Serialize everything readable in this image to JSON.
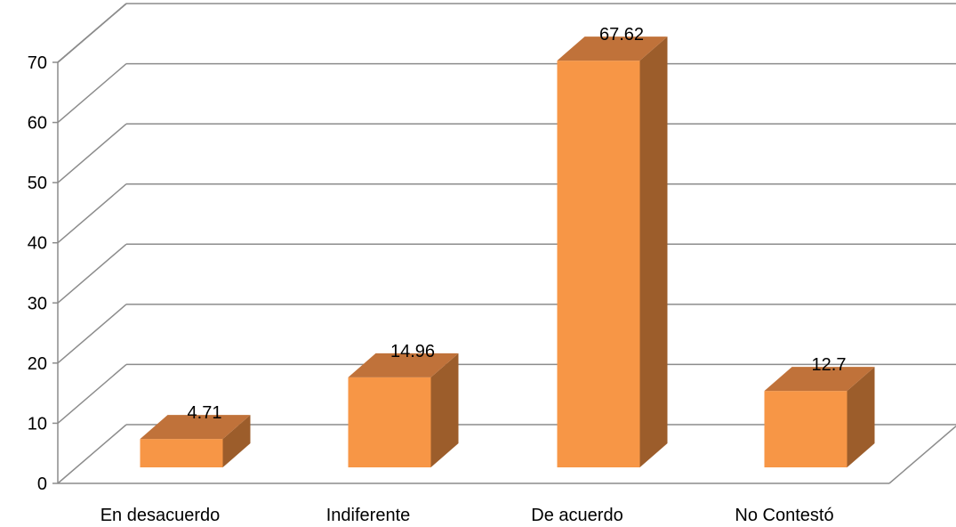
{
  "chart_data": {
    "type": "bar",
    "style": "3d-column",
    "categories": [
      "En desacuerdo",
      "Indiferente",
      "De acuerdo",
      "No Contestó"
    ],
    "values": [
      4.71,
      14.96,
      67.62,
      12.7
    ],
    "data_labels": [
      "4.71",
      "14.96",
      "67.62",
      "12.7"
    ],
    "ylim": [
      0,
      70
    ],
    "yticks": [
      0,
      10,
      20,
      30,
      40,
      50,
      60,
      70
    ],
    "ytick_labels": [
      "0",
      "10",
      "20",
      "30",
      "40",
      "50",
      "60",
      "70"
    ],
    "grid": true,
    "legend": "none",
    "colors": {
      "bar_front": "#F79646",
      "bar_top": "#C0723A",
      "bar_side": "#9C5D2B",
      "grid": "#8C8C8C"
    }
  }
}
